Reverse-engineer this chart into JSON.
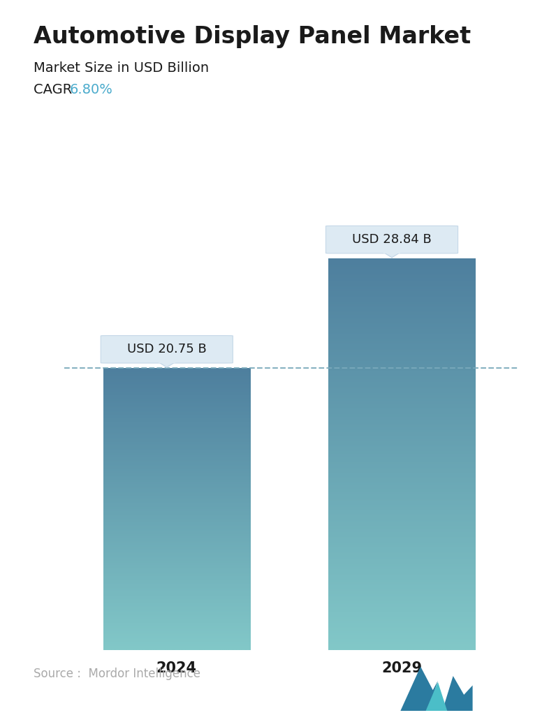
{
  "title": "Automotive Display Panel Market",
  "subtitle": "Market Size in USD Billion",
  "cagr_label": "CAGR",
  "cagr_value": "6.80%",
  "cagr_color": "#4AABCC",
  "categories": [
    "2024",
    "2029"
  ],
  "values": [
    20.75,
    28.84
  ],
  "bar_labels": [
    "USD 20.75 B",
    "USD 28.84 B"
  ],
  "bar_color_top": "#4E7F9E",
  "bar_color_bottom": "#82C8C8",
  "dashed_line_color": "#7AAABB",
  "source_text": "Source :  Mordor Intelligence",
  "source_color": "#aaaaaa",
  "background_color": "#FFFFFF",
  "title_fontsize": 24,
  "subtitle_fontsize": 14,
  "cagr_fontsize": 14,
  "bar_label_fontsize": 13,
  "tick_fontsize": 15,
  "ylim": [
    0,
    33
  ]
}
